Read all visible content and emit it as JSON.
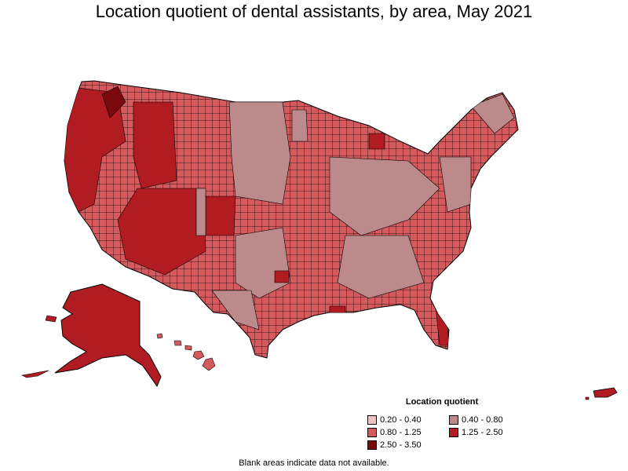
{
  "title": "Location quotient of dental assistants, by area, May 2021",
  "legend": {
    "title": "Location quotient",
    "items": [
      {
        "label": "0.20 - 0.40",
        "color": "#f0c4c6"
      },
      {
        "label": "0.40 - 0.80",
        "color": "#bd8a8c"
      },
      {
        "label": "0.80 - 1.25",
        "color": "#d45a5e"
      },
      {
        "label": "1.25 - 2.50",
        "color": "#b01c22"
      },
      {
        "label": "2.50 - 3.50",
        "color": "#7a0a0e"
      }
    ]
  },
  "footnote": "Blank areas indicate data not available.",
  "colors": {
    "class_0_20_0_40": "#f0c4c6",
    "class_0_40_0_80": "#bd8a8c",
    "class_0_80_1_25": "#d45a5e",
    "class_1_25_2_50": "#b01c22",
    "class_2_50_3_50": "#7a0a0e",
    "border": "#000000"
  }
}
